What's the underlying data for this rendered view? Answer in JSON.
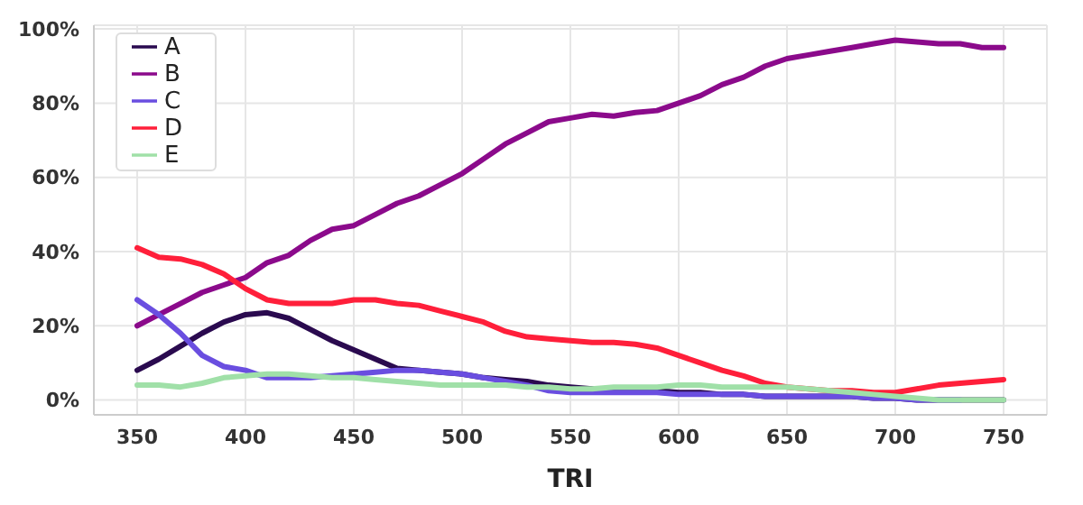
{
  "chart_data": {
    "type": "line",
    "xlabel": "TRI",
    "x": [
      350,
      360,
      370,
      380,
      390,
      400,
      410,
      420,
      430,
      440,
      450,
      460,
      470,
      480,
      490,
      500,
      510,
      520,
      530,
      540,
      550,
      560,
      570,
      580,
      590,
      600,
      610,
      620,
      630,
      640,
      650,
      660,
      670,
      680,
      690,
      700,
      710,
      720,
      730,
      740,
      750
    ],
    "series": [
      {
        "name": "A",
        "color": "#2a0a4f",
        "values": [
          8,
          11,
          14.5,
          18,
          21,
          23,
          23.5,
          22,
          19,
          16,
          13.5,
          11,
          8.5,
          8,
          7.5,
          7,
          6,
          5.5,
          5,
          4,
          3.5,
          3,
          2.5,
          2.5,
          2.5,
          2,
          2,
          1.5,
          1.5,
          1,
          1,
          1,
          1,
          1,
          0.5,
          0.5,
          0,
          0,
          0,
          0,
          0
        ]
      },
      {
        "name": "B",
        "color": "#8b0a8b",
        "values": [
          20,
          23,
          26,
          29,
          31,
          33,
          37,
          39,
          43,
          46,
          47,
          50,
          53,
          55,
          58,
          61,
          65,
          69,
          72,
          75,
          76,
          77,
          76.5,
          77.5,
          78,
          80,
          82,
          85,
          87,
          90,
          92,
          93,
          94,
          95,
          96,
          97,
          96.5,
          96,
          96,
          95,
          95
        ]
      },
      {
        "name": "C",
        "color": "#6a4ee0",
        "values": [
          27,
          23,
          18,
          12,
          9,
          8,
          6,
          6,
          6,
          6.5,
          7,
          7.5,
          8,
          8,
          7.5,
          7,
          6,
          5,
          4,
          2.5,
          2,
          2,
          2,
          2,
          2,
          1.5,
          1.5,
          1.5,
          1.5,
          1,
          1,
          1,
          1,
          1,
          0.5,
          0.5,
          0,
          0,
          0,
          null,
          null
        ]
      },
      {
        "name": "D",
        "color": "#ff1f3a",
        "values": [
          41,
          38.5,
          38,
          36.5,
          34,
          30,
          27,
          26,
          26,
          26,
          27,
          27,
          26,
          25.5,
          24,
          22.5,
          21,
          18.5,
          17,
          16.5,
          16,
          15.5,
          15.5,
          15,
          14,
          12,
          10,
          8,
          6.5,
          4.5,
          3.5,
          3,
          2.5,
          2.5,
          2,
          2,
          3,
          4,
          4.5,
          5,
          5.5
        ]
      },
      {
        "name": "E",
        "color": "#a0e0a8",
        "values": [
          4,
          4,
          3.5,
          4.5,
          6,
          6.5,
          7,
          7,
          6.5,
          6,
          6,
          5.5,
          5,
          4.5,
          4,
          4,
          4,
          4,
          3.5,
          3.5,
          3,
          3,
          3.5,
          3.5,
          3.5,
          4,
          4,
          3.5,
          3.5,
          3.5,
          3.5,
          3,
          2.5,
          2,
          1.5,
          1,
          0.5,
          0,
          0,
          0,
          0
        ]
      }
    ],
    "xlim": [
      330,
      770
    ],
    "ylim": [
      -4,
      101
    ],
    "xticks": [
      350,
      400,
      450,
      500,
      550,
      600,
      650,
      700,
      750
    ],
    "yticks": [
      {
        "value": 0,
        "label": "0%"
      },
      {
        "value": 20,
        "label": "20%"
      },
      {
        "value": 40,
        "label": "40%"
      },
      {
        "value": 60,
        "label": "60%"
      },
      {
        "value": 80,
        "label": "80%"
      },
      {
        "value": 100,
        "label": "100%"
      }
    ],
    "grid": true,
    "legend": "top left",
    "marker": "none",
    "line_style": "solid"
  }
}
